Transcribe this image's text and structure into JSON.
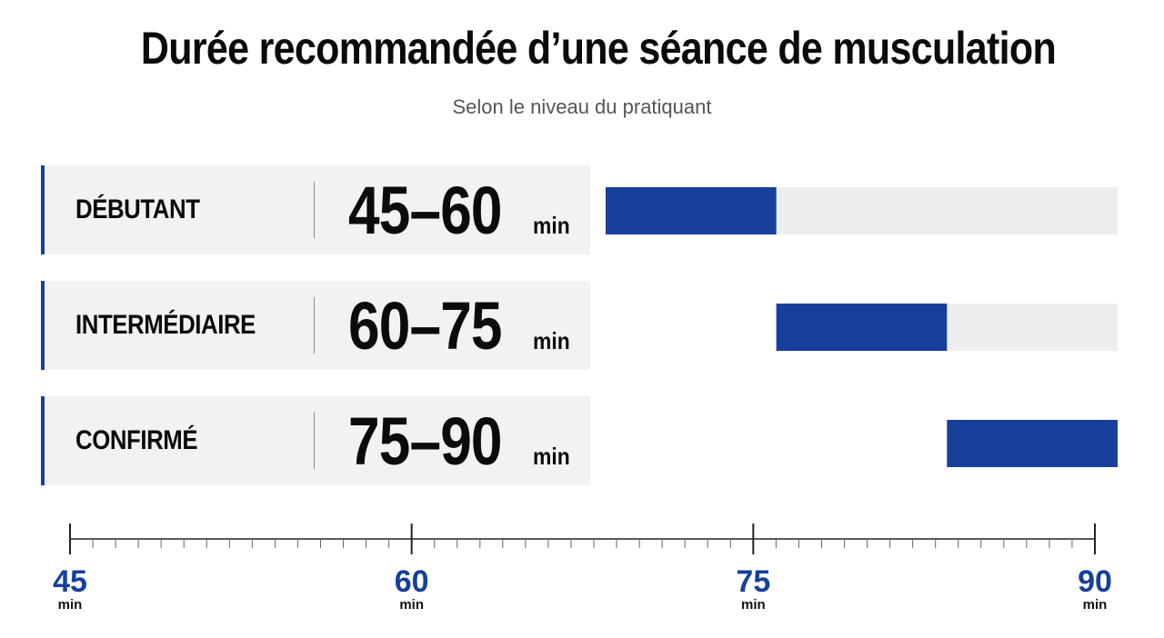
{
  "title": "Durée recommandée d’une séance de musculation",
  "subtitle": "Selon le niveau du pratiquant",
  "colors": {
    "bar": "#16409a",
    "track": "#eeeeee",
    "accent": "#16409a",
    "axis": "#222222",
    "axis_label": "#16409a"
  },
  "rows": [
    {
      "level": "DÉBUTANT",
      "range": "45–60",
      "unit": "min"
    },
    {
      "level": "INTERMÉDIAIRE",
      "range": "60–75",
      "unit": "min"
    },
    {
      "level": "CONFIRMÉ",
      "range": "75–90",
      "unit": "min"
    }
  ],
  "chart_data": {
    "type": "bar",
    "orientation": "horizontal-range",
    "categories": [
      "DÉBUTANT",
      "INTERMÉDIAIRE",
      "CONFIRMÉ"
    ],
    "ranges": [
      [
        45,
        60
      ],
      [
        60,
        75
      ],
      [
        75,
        90
      ]
    ],
    "xlim": [
      45,
      90
    ],
    "ticks": [
      45,
      60,
      75,
      90
    ],
    "tick_labels": [
      "45",
      "60",
      "75",
      "90"
    ],
    "unit": "min",
    "grid": false
  }
}
